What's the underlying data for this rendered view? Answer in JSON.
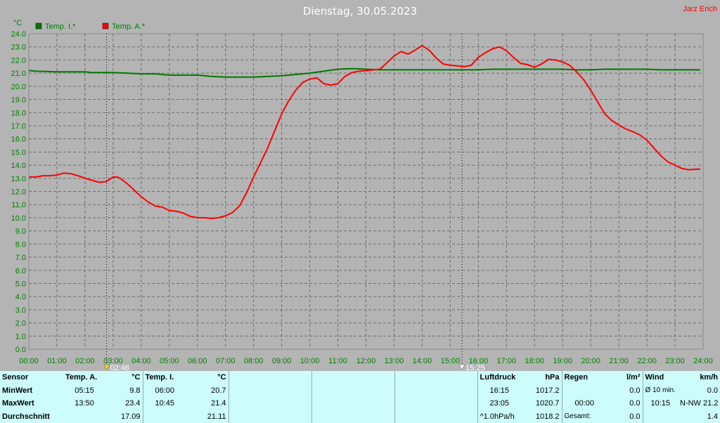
{
  "header": {
    "title": "Dienstag, 30.05.2023",
    "author": "Jarz Erich"
  },
  "colors": {
    "background": "#b4b4b4",
    "grid": "#6e6e6e",
    "indoor": "#007800",
    "outdoor": "#ff0000",
    "axis_text": "#008000",
    "table_bg": "#ccfcfc",
    "title": "#ffffff",
    "author": "#ff0000"
  },
  "chart_data": {
    "type": "line",
    "title": "Dienstag, 30.05.2023",
    "ylabel": "°C",
    "xlabel": "",
    "ylim": [
      0,
      24
    ],
    "xlim": [
      0,
      24
    ],
    "y_ticks": [
      "0.0",
      "1.0",
      "2.0",
      "3.0",
      "4.0",
      "5.0",
      "6.0",
      "7.0",
      "8.0",
      "9.0",
      "10.0",
      "11.0",
      "12.0",
      "13.0",
      "14.0",
      "15.0",
      "16.0",
      "17.0",
      "18.0",
      "19.0",
      "20.0",
      "21.0",
      "22.0",
      "23.0",
      "24.0"
    ],
    "x_ticks": [
      "00:00",
      "01:00",
      "02:00",
      "03:00",
      "04:00",
      "05:00",
      "06:00",
      "07:00",
      "08:00",
      "09:00",
      "10:00",
      "11:00",
      "12:00",
      "13:00",
      "14:00",
      "15:00",
      "16:00",
      "17:00",
      "18:00",
      "19:00",
      "20:00",
      "21:00",
      "22:00",
      "23:00",
      "24:00"
    ],
    "grid": true,
    "legend_position": "top-left",
    "markers": [
      {
        "time": 2.767,
        "label": "02:46",
        "kind": "sunrise"
      },
      {
        "time": 15.417,
        "label": "15:25",
        "kind": "sunset"
      }
    ],
    "series": [
      {
        "name": "Temp. I.*",
        "color": "#007800",
        "points": [
          [
            0.0,
            21.2
          ],
          [
            0.25,
            21.15
          ],
          [
            1.0,
            21.1
          ],
          [
            2.0,
            21.1
          ],
          [
            2.25,
            21.05
          ],
          [
            3.0,
            21.05
          ],
          [
            3.5,
            21.0
          ],
          [
            4.0,
            20.95
          ],
          [
            4.5,
            20.95
          ],
          [
            5.0,
            20.85
          ],
          [
            6.0,
            20.85
          ],
          [
            6.5,
            20.75
          ],
          [
            7.0,
            20.7
          ],
          [
            8.0,
            20.7
          ],
          [
            8.5,
            20.75
          ],
          [
            9.0,
            20.8
          ],
          [
            9.5,
            20.9
          ],
          [
            10.0,
            21.0
          ],
          [
            10.5,
            21.15
          ],
          [
            11.0,
            21.3
          ],
          [
            11.5,
            21.35
          ],
          [
            12.0,
            21.3
          ],
          [
            12.5,
            21.25
          ],
          [
            13.0,
            21.25
          ],
          [
            14.0,
            21.25
          ],
          [
            15.0,
            21.25
          ],
          [
            16.0,
            21.25
          ],
          [
            16.5,
            21.3
          ],
          [
            17.0,
            21.3
          ],
          [
            18.0,
            21.3
          ],
          [
            19.0,
            21.3
          ],
          [
            19.5,
            21.25
          ],
          [
            20.0,
            21.25
          ],
          [
            20.5,
            21.3
          ],
          [
            21.0,
            21.3
          ],
          [
            22.0,
            21.3
          ],
          [
            22.5,
            21.25
          ],
          [
            23.0,
            21.25
          ],
          [
            23.9,
            21.25
          ]
        ]
      },
      {
        "name": "Temp. A.*",
        "color": "#ff0000",
        "points": [
          [
            0.0,
            13.1
          ],
          [
            0.25,
            13.1
          ],
          [
            0.5,
            13.2
          ],
          [
            0.75,
            13.2
          ],
          [
            1.0,
            13.25
          ],
          [
            1.25,
            13.4
          ],
          [
            1.5,
            13.35
          ],
          [
            1.75,
            13.2
          ],
          [
            2.0,
            13.0
          ],
          [
            2.25,
            12.85
          ],
          [
            2.5,
            12.7
          ],
          [
            2.75,
            12.75
          ],
          [
            3.0,
            13.1
          ],
          [
            3.15,
            13.1
          ],
          [
            3.25,
            13.0
          ],
          [
            3.5,
            12.6
          ],
          [
            3.75,
            12.1
          ],
          [
            4.0,
            11.6
          ],
          [
            4.25,
            11.2
          ],
          [
            4.5,
            10.9
          ],
          [
            4.75,
            10.8
          ],
          [
            5.0,
            10.55
          ],
          [
            5.25,
            10.5
          ],
          [
            5.5,
            10.35
          ],
          [
            5.75,
            10.1
          ],
          [
            6.0,
            10.0
          ],
          [
            6.25,
            10.0
          ],
          [
            6.5,
            9.95
          ],
          [
            6.75,
            10.0
          ],
          [
            7.0,
            10.15
          ],
          [
            7.25,
            10.4
          ],
          [
            7.5,
            10.9
          ],
          [
            7.75,
            11.9
          ],
          [
            8.0,
            13.1
          ],
          [
            8.25,
            14.2
          ],
          [
            8.5,
            15.3
          ],
          [
            8.75,
            16.6
          ],
          [
            9.0,
            17.9
          ],
          [
            9.25,
            18.9
          ],
          [
            9.5,
            19.7
          ],
          [
            9.75,
            20.3
          ],
          [
            10.0,
            20.55
          ],
          [
            10.25,
            20.65
          ],
          [
            10.5,
            20.2
          ],
          [
            10.75,
            20.1
          ],
          [
            11.0,
            20.2
          ],
          [
            11.25,
            20.75
          ],
          [
            11.5,
            21.05
          ],
          [
            11.75,
            21.15
          ],
          [
            12.0,
            21.2
          ],
          [
            12.5,
            21.3
          ],
          [
            12.75,
            21.8
          ],
          [
            13.0,
            22.3
          ],
          [
            13.25,
            22.65
          ],
          [
            13.5,
            22.45
          ],
          [
            13.75,
            22.75
          ],
          [
            14.0,
            23.1
          ],
          [
            14.25,
            22.75
          ],
          [
            14.5,
            22.15
          ],
          [
            14.75,
            21.7
          ],
          [
            15.0,
            21.6
          ],
          [
            15.25,
            21.55
          ],
          [
            15.5,
            21.5
          ],
          [
            15.75,
            21.6
          ],
          [
            16.0,
            22.2
          ],
          [
            16.25,
            22.55
          ],
          [
            16.5,
            22.85
          ],
          [
            16.75,
            23.0
          ],
          [
            17.0,
            22.7
          ],
          [
            17.25,
            22.2
          ],
          [
            17.5,
            21.75
          ],
          [
            17.75,
            21.65
          ],
          [
            18.0,
            21.45
          ],
          [
            18.25,
            21.7
          ],
          [
            18.5,
            22.05
          ],
          [
            18.75,
            22.0
          ],
          [
            19.0,
            21.85
          ],
          [
            19.25,
            21.6
          ],
          [
            19.5,
            21.1
          ],
          [
            19.75,
            20.5
          ],
          [
            20.0,
            19.7
          ],
          [
            20.25,
            18.8
          ],
          [
            20.5,
            17.9
          ],
          [
            20.75,
            17.4
          ],
          [
            21.0,
            17.05
          ],
          [
            21.25,
            16.75
          ],
          [
            21.5,
            16.55
          ],
          [
            21.75,
            16.3
          ],
          [
            22.0,
            15.9
          ],
          [
            22.25,
            15.3
          ],
          [
            22.5,
            14.7
          ],
          [
            22.75,
            14.25
          ],
          [
            23.0,
            14.0
          ],
          [
            23.25,
            13.75
          ],
          [
            23.5,
            13.65
          ],
          [
            23.75,
            13.7
          ],
          [
            23.9,
            13.7
          ]
        ]
      }
    ]
  },
  "stats": {
    "labels": {
      "sensor": "Sensor",
      "min": "MinWert",
      "max": "MaxWert",
      "avg": "Durchschnitt"
    },
    "temp_a": {
      "header": "Temp. A.",
      "unit": "°C",
      "min_time": "05:15",
      "min_val": "9.8",
      "max_time": "13:50",
      "max_val": "23.4",
      "avg": "17.09"
    },
    "temp_i": {
      "header": "Temp. I.",
      "unit": "°C",
      "min_time": "06:00",
      "min_val": "20.7",
      "max_time": "10:45",
      "max_val": "21.4",
      "avg": "21.11"
    },
    "pressure": {
      "header": "Luftdruck",
      "unit": "hPa",
      "min_time": "16:15",
      "min_val": "1017.2",
      "max_time": "23:05",
      "max_val": "1020.7",
      "trend": "^1.0hPa/h",
      "current": "1018.2"
    },
    "rain": {
      "header": "Regen",
      "unit": "l/m²",
      "row1_val": "0.0",
      "max_time": "00:00",
      "max_val": "0.0",
      "total_label": "Gesamt:",
      "total_val": "0.0"
    },
    "wind": {
      "header": "Wind",
      "unit": "km/h",
      "avg_label": "Ø 10 min.",
      "avg_val": "0.0",
      "max_time": "10:15",
      "max_dir_val": "N-NW 21.2",
      "last_val": "1.4"
    }
  }
}
